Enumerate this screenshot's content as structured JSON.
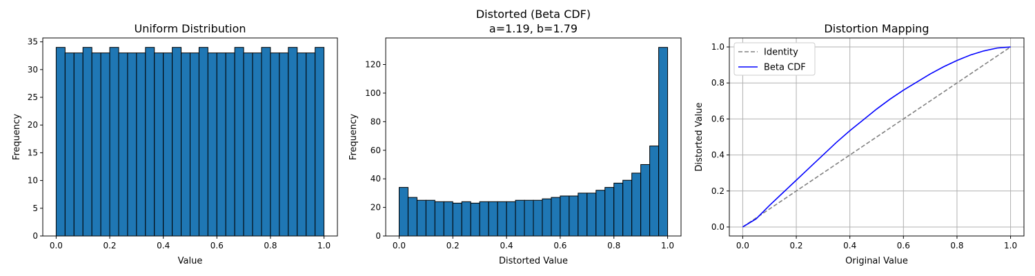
{
  "chart_data": [
    {
      "type": "bar",
      "title": "Uniform Distribution",
      "xlabel": "Value",
      "ylabel": "Frequency",
      "xlim": [
        -0.05,
        1.05
      ],
      "ylim": [
        0,
        35.7
      ],
      "xticks": [
        "0.0",
        "0.2",
        "0.4",
        "0.6",
        "0.8",
        "1.0"
      ],
      "yticks": [
        "0",
        "5",
        "10",
        "15",
        "20",
        "25",
        "30",
        "35"
      ],
      "grid": false,
      "bins": 30,
      "bin_range": [
        0,
        1
      ],
      "values": [
        34,
        33,
        33,
        34,
        33,
        33,
        34,
        33,
        33,
        33,
        34,
        33,
        33,
        34,
        33,
        33,
        34,
        33,
        33,
        33,
        34,
        33,
        33,
        34,
        33,
        33,
        34,
        33,
        33,
        34
      ],
      "bar_color": "#1f77b4",
      "edge_color": "#000000"
    },
    {
      "type": "bar",
      "title": "Distorted (Beta CDF)",
      "subtitle": "a=1.19, b=1.79",
      "xlabel": "Distorted Value",
      "ylabel": "Frequency",
      "xlim": [
        -0.05,
        1.05
      ],
      "ylim": [
        0,
        138.6
      ],
      "xticks": [
        "0.0",
        "0.2",
        "0.4",
        "0.6",
        "0.8",
        "1.0"
      ],
      "yticks": [
        "0",
        "20",
        "40",
        "60",
        "80",
        "100",
        "120"
      ],
      "grid": false,
      "bins": 30,
      "bin_range": [
        0,
        1
      ],
      "values": [
        34,
        27,
        25,
        25,
        24,
        24,
        23,
        24,
        23,
        24,
        24,
        24,
        24,
        25,
        25,
        25,
        26,
        27,
        28,
        28,
        30,
        30,
        32,
        34,
        37,
        39,
        44,
        50,
        63,
        132
      ],
      "bar_color": "#1f77b4",
      "edge_color": "#000000"
    },
    {
      "type": "line",
      "title": "Distortion Mapping",
      "xlabel": "Original Value",
      "ylabel": "Distorted Value",
      "xlim": [
        -0.05,
        1.05
      ],
      "ylim": [
        -0.05,
        1.05
      ],
      "xticks": [
        "0.0",
        "0.2",
        "0.4",
        "0.6",
        "0.8",
        "1.0"
      ],
      "yticks": [
        "0.0",
        "0.2",
        "0.4",
        "0.6",
        "0.8",
        "1.0"
      ],
      "grid": true,
      "legend_position": "top-left",
      "series": [
        {
          "name": "Identity",
          "color": "#808080",
          "style": "dashed",
          "x": [
            0,
            1
          ],
          "y": [
            0,
            1
          ]
        },
        {
          "name": "Beta CDF",
          "color": "#0000ff",
          "style": "solid",
          "x": [
            0,
            0.05,
            0.1,
            0.15,
            0.2,
            0.25,
            0.3,
            0.35,
            0.4,
            0.45,
            0.5,
            0.55,
            0.6,
            0.65,
            0.7,
            0.75,
            0.8,
            0.85,
            0.9,
            0.95,
            1.0
          ],
          "y": [
            0,
            0.045,
            0.12,
            0.19,
            0.26,
            0.33,
            0.4,
            0.47,
            0.535,
            0.595,
            0.655,
            0.71,
            0.76,
            0.805,
            0.85,
            0.89,
            0.925,
            0.955,
            0.978,
            0.994,
            1.0
          ]
        }
      ]
    }
  ]
}
